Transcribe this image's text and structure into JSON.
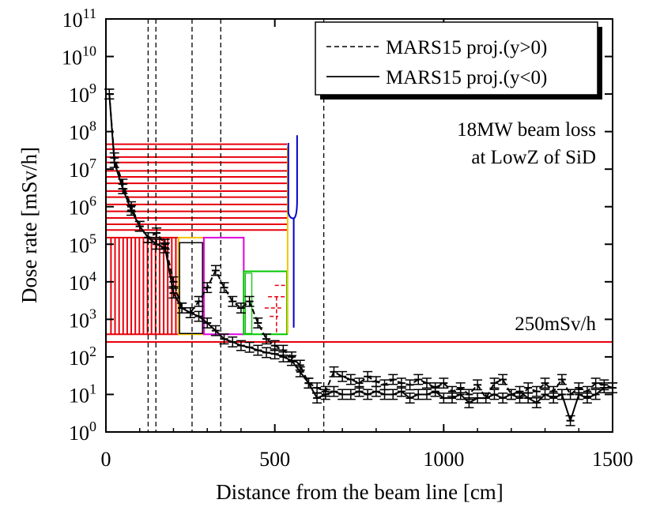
{
  "chart_data": {
    "type": "line",
    "xlabel": "Distance from the beam line [cm]",
    "ylabel": "Dose rate [mSv/h]",
    "xlim": [
      0,
      1500
    ],
    "ylim_log10": [
      0,
      11
    ],
    "y_scale": "log",
    "x_ticks": [
      0,
      500,
      1000,
      1500
    ],
    "y_tick_exponents": [
      0,
      1,
      2,
      3,
      4,
      5,
      6,
      7,
      8,
      9,
      10,
      11
    ],
    "y_tick_base": "10",
    "grid": false,
    "legend_position": "top-right",
    "legend": [
      {
        "label": "MARS15 proj.(y>0)",
        "style": "dashed"
      },
      {
        "label": "MARS15 proj.(y<0)",
        "style": "solid"
      }
    ],
    "annotations": {
      "beam_loss_line1": "18MW beam loss",
      "beam_loss_line2": "at LowZ of SiD",
      "limit_label": "250mSv/h"
    },
    "reference_line": {
      "y": 250,
      "color": "#e8000b"
    },
    "vertical_markers_x": [
      125,
      148,
      255,
      340,
      645
    ],
    "series": [
      {
        "name": "MARS15 proj.(y>0)",
        "style": "dashed",
        "color": "#000000",
        "x": [
          10,
          25,
          50,
          75,
          100,
          125,
          150,
          175,
          200,
          225,
          250,
          275,
          300,
          325,
          350,
          375,
          400,
          425,
          450,
          475,
          500,
          525,
          550,
          575,
          600,
          625,
          650,
          675,
          700,
          725,
          750,
          775,
          800,
          825,
          850,
          875,
          900,
          925,
          950,
          975,
          1000,
          1025,
          1050,
          1075,
          1100,
          1125,
          1150,
          1175,
          1200,
          1225,
          1250,
          1275,
          1300,
          1325,
          1350,
          1375,
          1400,
          1425,
          1450,
          1475,
          1500
        ],
        "y": [
          1000000000.0,
          20000000.0,
          4000000.0,
          1000000.0,
          300000.0,
          150000.0,
          200000.0,
          100000.0,
          10000.0,
          2000.0,
          1500.0,
          3000.0,
          7000.0,
          20000.0,
          7000.0,
          3000.0,
          2000.0,
          3000.0,
          800,
          300,
          200,
          150,
          100,
          60,
          20,
          15,
          12,
          40,
          30,
          25,
          20,
          30,
          22,
          18,
          25,
          20,
          18,
          25,
          20,
          15,
          20,
          12,
          15,
          10,
          18,
          8,
          20,
          25,
          10,
          8,
          15,
          12,
          20,
          12,
          25,
          10,
          15,
          12,
          20,
          18,
          15
        ]
      },
      {
        "name": "MARS15 proj.(y<0)",
        "style": "solid",
        "color": "#000000",
        "x": [
          10,
          25,
          50,
          75,
          100,
          125,
          150,
          175,
          200,
          225,
          250,
          275,
          300,
          325,
          350,
          375,
          400,
          425,
          450,
          475,
          500,
          525,
          550,
          575,
          600,
          625,
          650,
          675,
          700,
          725,
          750,
          775,
          800,
          825,
          850,
          875,
          900,
          925,
          950,
          975,
          1000,
          1025,
          1050,
          1075,
          1100,
          1125,
          1150,
          1175,
          1200,
          1225,
          1250,
          1275,
          1300,
          1325,
          1350,
          1375,
          1400,
          1425,
          1450,
          1475,
          1500
        ],
        "y": [
          1000000000.0,
          15000000.0,
          3000000.0,
          800000.0,
          300000.0,
          150000.0,
          100000.0,
          80000.0,
          5000.0,
          2000.0,
          1500.0,
          1200.0,
          800,
          500,
          300,
          250,
          200,
          180,
          150,
          130,
          120,
          100,
          80,
          40,
          20,
          8,
          10,
          12,
          10,
          10,
          12,
          10,
          12,
          10,
          10,
          12,
          8,
          10,
          10,
          12,
          8,
          8,
          10,
          6,
          8,
          8,
          10,
          8,
          10,
          12,
          8,
          6,
          10,
          8,
          10,
          2,
          10,
          8,
          10,
          15,
          15
        ]
      }
    ],
    "geometry_overlay": {
      "note_colors": {
        "red": "#e8000b",
        "yellow": "#f5c400",
        "magenta": "#e000e0",
        "green": "#00c800",
        "blue": "#0000cc"
      }
    }
  }
}
